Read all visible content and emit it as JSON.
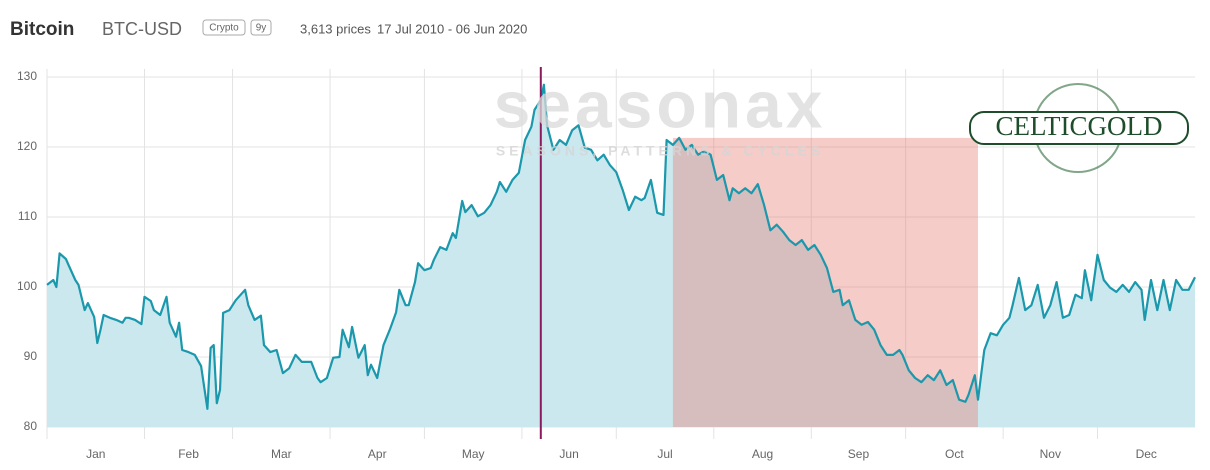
{
  "chart_data": {
    "type": "area",
    "title": "Bitcoin",
    "subtitle": "BTC-USD",
    "badges": [
      "Crypto",
      "9y"
    ],
    "info": [
      "3,613 prices",
      "17 Jul 2010 - 06 Jun 2020"
    ],
    "watermark": {
      "name": "seasonax",
      "tagline": "SEASONS, PATTERNS & CYCLES"
    },
    "logo": "CELTICGOLD",
    "color": "#1b98ac",
    "fill": "#cbe8ee",
    "xlim": [
      1,
      366
    ],
    "xticks": [
      {
        "value": 1,
        "label": "Jan"
      },
      {
        "value": 32,
        "label": "Feb"
      },
      {
        "value": 60,
        "label": "Mar"
      },
      {
        "value": 91,
        "label": "Apr"
      },
      {
        "value": 121,
        "label": "May"
      },
      {
        "value": 152,
        "label": "Jun"
      },
      {
        "value": 182,
        "label": "Jul"
      },
      {
        "value": 213,
        "label": "Aug"
      },
      {
        "value": 244,
        "label": "Sep"
      },
      {
        "value": 274,
        "label": "Oct"
      },
      {
        "value": 305,
        "label": "Nov"
      },
      {
        "value": 335,
        "label": "Dec"
      }
    ],
    "ylim": [
      80,
      130
    ],
    "yticks": [
      80,
      90,
      100,
      110,
      120,
      130
    ],
    "grid": true,
    "marker_line": {
      "x": 158,
      "color": "#8a1a5c"
    },
    "highlight": {
      "range": [
        200,
        297
      ],
      "color": "rgba(228,120,110,0.38)"
    },
    "x": [
      1,
      3,
      4,
      5,
      7,
      8,
      10,
      11,
      13,
      14,
      16,
      17,
      18,
      19,
      21,
      23,
      25,
      26,
      27,
      29,
      31,
      32,
      34,
      35,
      37,
      39,
      40,
      42,
      43,
      44,
      46,
      48,
      50,
      52,
      53,
      54,
      55,
      56,
      57,
      59,
      61,
      64,
      65,
      67,
      69,
      70,
      72,
      74,
      76,
      78,
      80,
      82,
      85,
      87,
      88,
      90,
      92,
      94,
      95,
      97,
      98,
      100,
      102,
      103,
      104,
      106,
      108,
      110,
      112,
      113,
      115,
      116,
      118,
      119,
      121,
      123,
      124,
      126,
      128,
      130,
      131,
      133,
      134,
      136,
      138,
      140,
      142,
      144,
      145,
      147,
      149,
      151,
      153,
      155,
      156,
      158,
      159,
      160,
      162,
      164,
      166,
      168,
      170,
      172,
      174,
      176,
      178,
      180,
      182,
      184,
      186,
      188,
      190,
      191,
      193,
      195,
      197,
      198,
      200,
      202,
      204,
      206,
      208,
      210,
      212,
      214,
      216,
      218,
      219,
      221,
      223,
      225,
      227,
      229,
      231,
      233,
      235,
      237,
      239,
      241,
      243,
      245,
      247,
      249,
      251,
      253,
      254,
      256,
      258,
      260,
      262,
      264,
      266,
      268,
      270,
      272,
      273,
      275,
      277,
      279,
      281,
      283,
      285,
      287,
      289,
      291,
      293,
      294,
      296,
      297,
      299,
      301,
      303,
      305,
      307,
      308,
      310,
      312,
      314,
      316,
      318,
      320,
      322,
      324,
      326,
      328,
      330,
      331,
      333,
      335,
      337,
      339,
      341,
      343,
      345,
      347,
      349,
      350,
      352,
      354,
      356,
      358,
      360,
      362,
      364,
      366
    ],
    "values": [
      100.3,
      101,
      100,
      104.8,
      104,
      103,
      101,
      100.3,
      96.7,
      97.7,
      95.7,
      92,
      93.9,
      96,
      95.6,
      95.3,
      94.9,
      95.6,
      95.6,
      95.3,
      94.7,
      98.6,
      98,
      96.7,
      96,
      98.6,
      94.9,
      92.9,
      94.9,
      91,
      90.7,
      90.3,
      88.7,
      82.6,
      91.3,
      91.7,
      83.4,
      85.3,
      96.3,
      96.7,
      98.1,
      99.6,
      97.4,
      95.3,
      95.9,
      91.7,
      90.7,
      91,
      87.7,
      88.4,
      90.3,
      89.3,
      89.3,
      87,
      86.4,
      87,
      89.9,
      90,
      93.9,
      91.4,
      94.3,
      89.9,
      91.7,
      87.4,
      88.9,
      87,
      91.7,
      93.9,
      96.4,
      99.6,
      97.4,
      97.4,
      100.7,
      103.4,
      102.4,
      102.7,
      103.9,
      105.7,
      105.3,
      107.7,
      107,
      112.3,
      110.7,
      111.7,
      110.1,
      110.6,
      111.7,
      113.6,
      115,
      113.6,
      115.3,
      116.3,
      121,
      122.9,
      125.3,
      126.7,
      128.9,
      123.1,
      119.6,
      121,
      120.3,
      122.4,
      123.1,
      119.9,
      119.6,
      118.1,
      118.9,
      117.4,
      116.4,
      113.9,
      111,
      112.9,
      112.4,
      112.7,
      115.3,
      110.6,
      110.3,
      121,
      120.3,
      121.3,
      119.6,
      120.3,
      118.9,
      119.4,
      118.9,
      115.3,
      116,
      112.4,
      114.1,
      113.4,
      114.1,
      113.4,
      114.7,
      111.7,
      108.1,
      108.9,
      107.9,
      106.7,
      106,
      106.7,
      105.3,
      106,
      104.6,
      102.7,
      99.3,
      99.6,
      97.4,
      98.1,
      95.3,
      94.6,
      95,
      93.9,
      91.7,
      90.3,
      90.3,
      91,
      90.3,
      88.1,
      87,
      86.4,
      87.4,
      86.7,
      88.1,
      86,
      86.7,
      83.9,
      83.6,
      84.6,
      87.4,
      83.9,
      91,
      93.4,
      93.1,
      94.6,
      95.6,
      97.4,
      101.3,
      96.7,
      97.4,
      100.3,
      95.6,
      97.4,
      100.7,
      95.6,
      96,
      98.9,
      98.4,
      102.4,
      98.1,
      104.6,
      101,
      99.9,
      99.3,
      100.3,
      99.3,
      100.7,
      99.6,
      95.3,
      101,
      96.7,
      101,
      96.7,
      101,
      99.6,
      99.6,
      101.4
    ]
  }
}
